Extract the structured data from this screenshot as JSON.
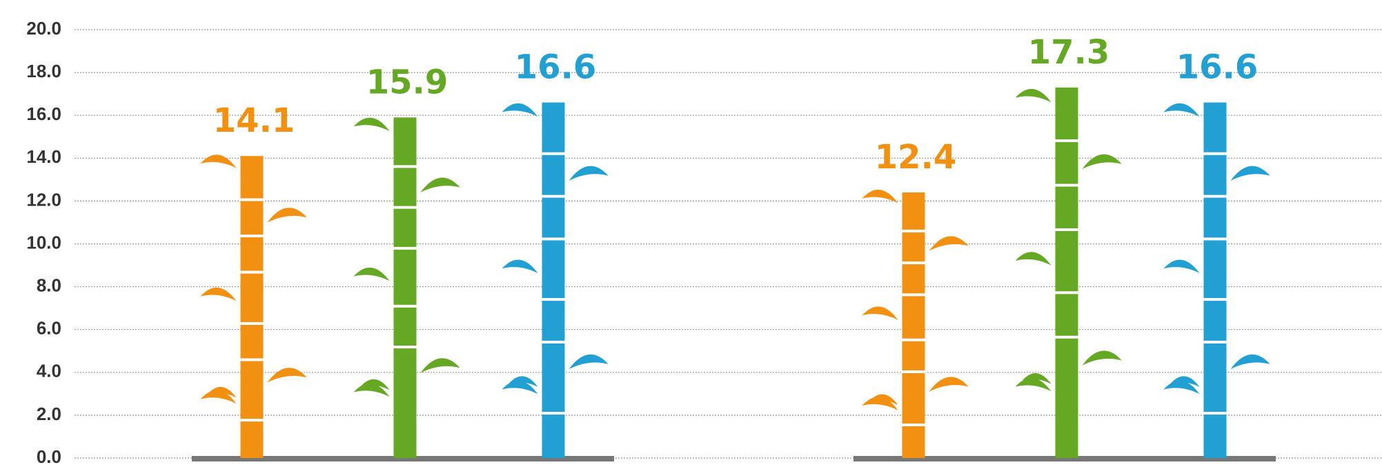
{
  "chart_data": {
    "type": "bar",
    "categories": [
      null,
      null
    ],
    "series": [
      {
        "color": "#f29111",
        "values": [
          14.1,
          12.4
        ]
      },
      {
        "color": "#65a824",
        "values": [
          15.9,
          17.3
        ]
      },
      {
        "color": "#22a0d3",
        "values": [
          16.6,
          16.6
        ]
      }
    ],
    "ylim": [
      0,
      20
    ],
    "yticks": [
      {
        "value": 0,
        "label": "0.0"
      },
      {
        "value": 2,
        "label": "2.0"
      },
      {
        "value": 4,
        "label": "4.0"
      },
      {
        "value": 6,
        "label": "6.0"
      },
      {
        "value": 8,
        "label": "8.0"
      },
      {
        "value": 10,
        "label": "10.0"
      },
      {
        "value": 12,
        "label": "12.0"
      },
      {
        "value": 14,
        "label": "14.0"
      },
      {
        "value": 16,
        "label": "16.0"
      },
      {
        "value": 18,
        "label": "18.0"
      },
      {
        "value": 20,
        "label": "20.0"
      }
    ],
    "grid": true
  }
}
